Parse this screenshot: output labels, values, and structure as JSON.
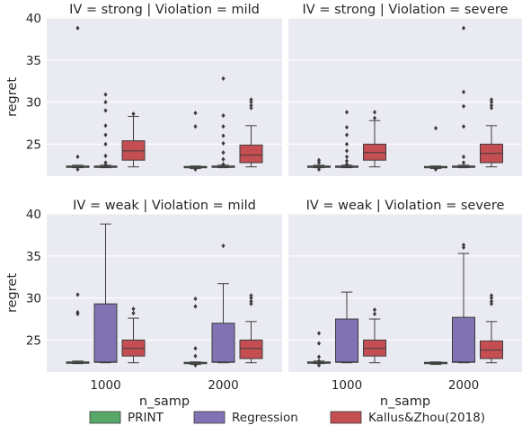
{
  "chart_data": {
    "type": "boxplot",
    "x_label": "n_samp",
    "y_label": "regret",
    "y_ticks": [
      25,
      30,
      35,
      40
    ],
    "x_categories": [
      "1000",
      "2000"
    ],
    "legend": {
      "placement": "bottom-center",
      "entries": [
        {
          "name": "PRINT",
          "color": "#55a868"
        },
        {
          "name": "Regression",
          "color": "#8172b3"
        },
        {
          "name": "Kallus&Zhou(2018)",
          "color": "#c44e52"
        }
      ]
    },
    "grid": true,
    "facets": [
      {
        "title": "IV = strong | Violation = mild",
        "ylim": [
          21.2,
          40.0
        ],
        "groups": [
          {
            "n_samp": "1000",
            "boxes": [
              {
                "series": "PRINT",
                "q1": 22.3,
                "median": 22.35,
                "q3": 22.4,
                "whisker_low": 22.2,
                "whisker_high": 22.5,
                "outliers": [
                  38.8,
                  23.5,
                  22.0
                ]
              },
              {
                "series": "Regression",
                "q1": 22.3,
                "median": 22.35,
                "q3": 22.4,
                "whisker_low": 22.2,
                "whisker_high": 22.5,
                "outliers": [
                  30.9,
                  30.0,
                  29.0,
                  27.2,
                  26.1,
                  25.0,
                  23.6,
                  22.8,
                  22.5
                ]
              },
              {
                "series": "Kallus&Zhou(2018)",
                "q1": 23.1,
                "median": 24.2,
                "q3": 25.4,
                "whisker_low": 22.3,
                "whisker_high": 28.3,
                "outliers": [
                  28.6
                ]
              }
            ]
          },
          {
            "n_samp": "2000",
            "boxes": [
              {
                "series": "PRINT",
                "q1": 22.25,
                "median": 22.3,
                "q3": 22.35,
                "whisker_low": 22.1,
                "whisker_high": 22.4,
                "outliers": [
                  28.7,
                  27.1,
                  22.0
                ]
              },
              {
                "series": "Regression",
                "q1": 22.3,
                "median": 22.35,
                "q3": 22.4,
                "whisker_low": 22.2,
                "whisker_high": 22.5,
                "outliers": [
                  32.8,
                  28.4,
                  27.1,
                  26.0,
                  25.1,
                  24.0,
                  23.2,
                  22.6
                ]
              },
              {
                "series": "Kallus&Zhou(2018)",
                "q1": 22.8,
                "median": 23.7,
                "q3": 24.9,
                "whisker_low": 22.3,
                "whisker_high": 27.2,
                "outliers": [
                  30.3,
                  30.0,
                  29.6,
                  29.3
                ]
              }
            ]
          }
        ]
      },
      {
        "title": "IV = strong | Violation = severe",
        "ylim": [
          21.2,
          40.0
        ],
        "groups": [
          {
            "n_samp": "1000",
            "boxes": [
              {
                "series": "PRINT",
                "q1": 22.3,
                "median": 22.35,
                "q3": 22.4,
                "whisker_low": 22.2,
                "whisker_high": 22.5,
                "outliers": [
                  23.1,
                  22.8,
                  22.0
                ]
              },
              {
                "series": "Regression",
                "q1": 22.3,
                "median": 22.35,
                "q3": 22.4,
                "whisker_low": 22.2,
                "whisker_high": 22.5,
                "outliers": [
                  28.8,
                  27.0,
                  26.1,
                  25.0,
                  24.2,
                  23.5,
                  23.0,
                  22.6
                ]
              },
              {
                "series": "Kallus&Zhou(2018)",
                "q1": 23.1,
                "median": 24.0,
                "q3": 25.0,
                "whisker_low": 22.3,
                "whisker_high": 27.8,
                "outliers": [
                  28.8,
                  28.1
                ]
              }
            ]
          },
          {
            "n_samp": "2000",
            "boxes": [
              {
                "series": "PRINT",
                "q1": 22.25,
                "median": 22.3,
                "q3": 22.35,
                "whisker_low": 22.1,
                "whisker_high": 22.4,
                "outliers": [
                  26.9,
                  22.0
                ]
              },
              {
                "series": "Regression",
                "q1": 22.3,
                "median": 22.35,
                "q3": 22.4,
                "whisker_low": 22.2,
                "whisker_high": 22.5,
                "outliers": [
                  38.8,
                  31.2,
                  29.5,
                  27.1,
                  23.5,
                  22.8
                ]
              },
              {
                "series": "Kallus&Zhou(2018)",
                "q1": 22.8,
                "median": 23.9,
                "q3": 25.0,
                "whisker_low": 22.3,
                "whisker_high": 27.2,
                "outliers": [
                  30.3,
                  30.0,
                  29.6,
                  29.3
                ]
              }
            ]
          }
        ]
      },
      {
        "title": "IV = weak | Violation = mild",
        "ylim": [
          21.2,
          40.0
        ],
        "groups": [
          {
            "n_samp": "1000",
            "boxes": [
              {
                "series": "PRINT",
                "q1": 22.3,
                "median": 22.35,
                "q3": 22.4,
                "whisker_low": 22.2,
                "whisker_high": 22.5,
                "outliers": [
                  30.4,
                  28.3,
                  28.1
                ]
              },
              {
                "series": "Regression",
                "q1": 22.35,
                "median": 22.4,
                "q3": 29.3,
                "whisker_low": 22.3,
                "whisker_high": 38.8,
                "outliers": []
              },
              {
                "series": "Kallus&Zhou(2018)",
                "q1": 23.1,
                "median": 24.0,
                "q3": 25.0,
                "whisker_low": 22.3,
                "whisker_high": 27.6,
                "outliers": [
                  28.7,
                  28.2
                ]
              }
            ]
          },
          {
            "n_samp": "2000",
            "boxes": [
              {
                "series": "PRINT",
                "q1": 22.25,
                "median": 22.3,
                "q3": 22.35,
                "whisker_low": 22.1,
                "whisker_high": 22.4,
                "outliers": [
                  29.9,
                  29.0,
                  24.0,
                  23.1,
                  22.0
                ]
              },
              {
                "series": "Regression",
                "q1": 22.35,
                "median": 22.4,
                "q3": 27.0,
                "whisker_low": 22.3,
                "whisker_high": 31.7,
                "outliers": [
                  36.2
                ]
              },
              {
                "series": "Kallus&Zhou(2018)",
                "q1": 22.8,
                "median": 24.0,
                "q3": 25.0,
                "whisker_low": 22.3,
                "whisker_high": 27.2,
                "outliers": [
                  30.3,
                  30.0,
                  29.6,
                  29.3
                ]
              }
            ]
          }
        ]
      },
      {
        "title": "IV = weak | Violation = severe",
        "ylim": [
          21.2,
          40.0
        ],
        "groups": [
          {
            "n_samp": "1000",
            "boxes": [
              {
                "series": "PRINT",
                "q1": 22.3,
                "median": 22.35,
                "q3": 22.4,
                "whisker_low": 22.2,
                "whisker_high": 22.5,
                "outliers": [
                  25.8,
                  24.6,
                  23.0,
                  22.5,
                  22.0
                ]
              },
              {
                "series": "Regression",
                "q1": 22.35,
                "median": 22.4,
                "q3": 27.5,
                "whisker_low": 22.3,
                "whisker_high": 30.7,
                "outliers": []
              },
              {
                "series": "Kallus&Zhou(2018)",
                "q1": 23.1,
                "median": 24.0,
                "q3": 25.0,
                "whisker_low": 22.3,
                "whisker_high": 27.5,
                "outliers": [
                  28.6,
                  28.1
                ]
              }
            ]
          },
          {
            "n_samp": "2000",
            "boxes": [
              {
                "series": "PRINT",
                "q1": 22.25,
                "median": 22.3,
                "q3": 22.35,
                "whisker_low": 22.1,
                "whisker_high": 22.4,
                "outliers": []
              },
              {
                "series": "Regression",
                "q1": 22.35,
                "median": 22.4,
                "q3": 27.7,
                "whisker_low": 22.3,
                "whisker_high": 35.3,
                "outliers": [
                  36.3,
                  36.0
                ]
              },
              {
                "series": "Kallus&Zhou(2018)",
                "q1": 22.8,
                "median": 23.8,
                "q3": 24.9,
                "whisker_low": 22.3,
                "whisker_high": 27.2,
                "outliers": [
                  30.3,
                  30.0,
                  29.6,
                  29.3
                ]
              }
            ]
          }
        ]
      }
    ]
  }
}
